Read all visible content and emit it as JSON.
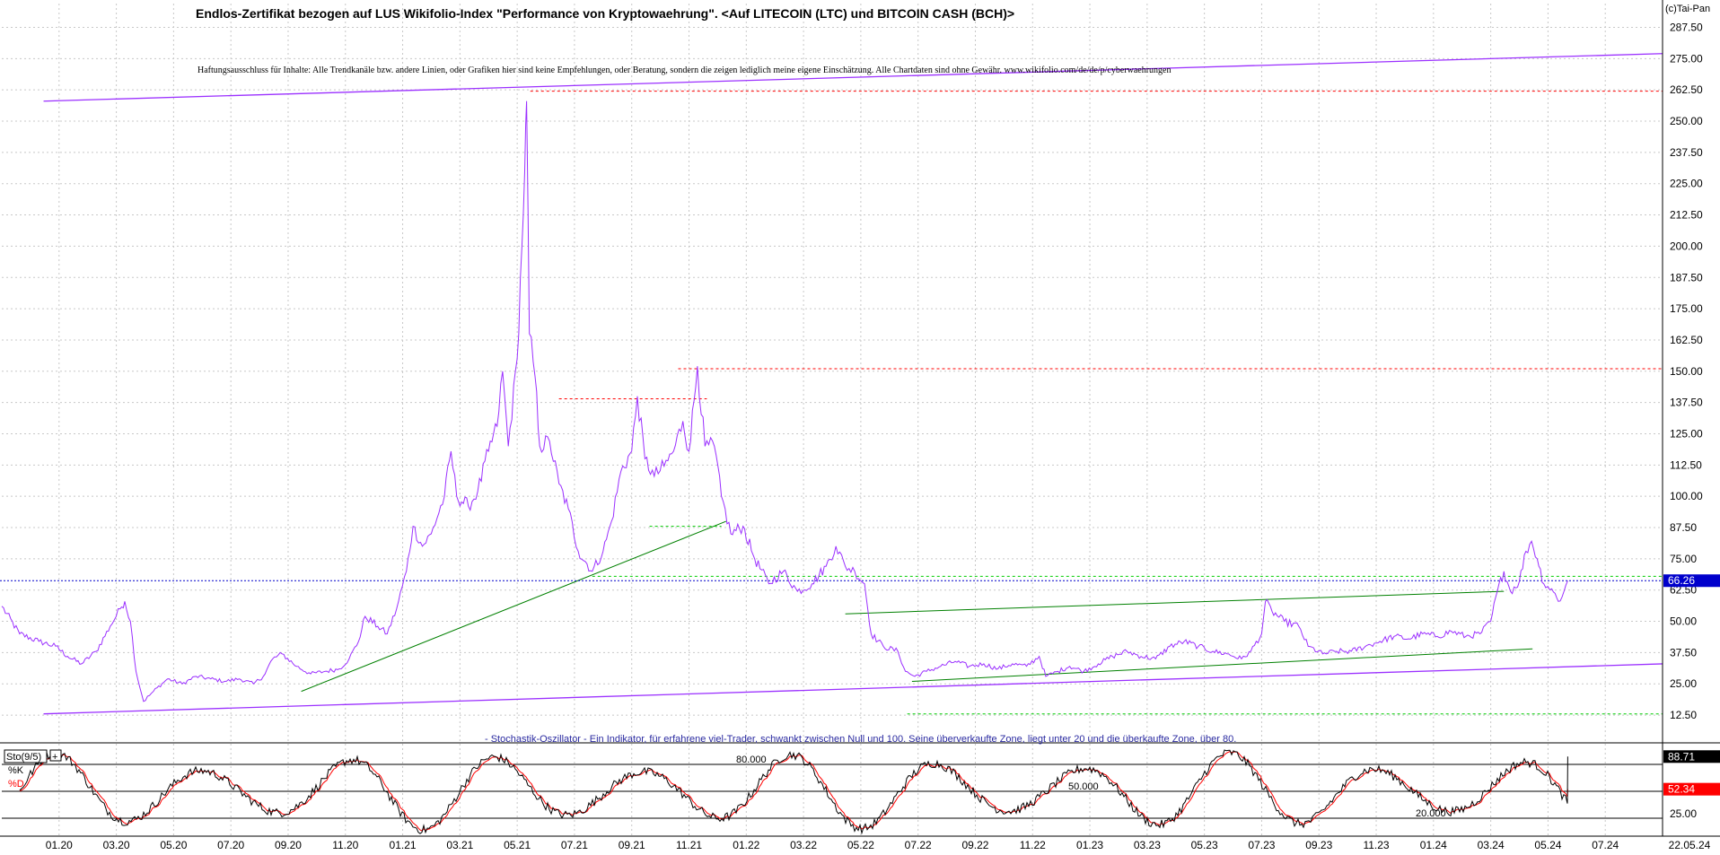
{
  "copyright": "(c)Tai-Pan",
  "title": "Endlos-Zertifikat bezogen auf LUS Wikifolio-Index \"Performance von Kryptowaehrung\". <Auf LITECOIN (LTC) und BITCOIN CASH (BCH)>",
  "disclaimer": "Haftungsausschluss für Inhalte: Alle Trendkanäle bzw. andere Linien, oder Grafiken hier sind keine Empfehlungen, oder Beratung, sondern die zeigen lediglich meine eigene Einschätzung. Alle Chartdaten sind ohne Gewähr. www.wikifolio.com/de/de/p/cyberwaehrungen",
  "indicator_note": "- Stochastik-Oszillator - Ein Indikator, für erfahrene viel-Trader, schwankt zwischen Null und 100. Seine überverkaufte Zone, liegt unter 20 und die überkaufte Zone, über 80.",
  "colors": {
    "price": "#9b30ff",
    "trend": "#008000",
    "resistance": "#ff0000",
    "support_dash": "#00cc00",
    "last_price": "#0000cc",
    "k_line": "#000000",
    "d_line": "#ff0000"
  },
  "chart_data": [
    {
      "type": "line",
      "name": "price",
      "y_ticks": [
        "12.50",
        "25.00",
        "37.50",
        "50.00",
        "62.50",
        "75.00",
        "87.50",
        "100.00",
        "112.50",
        "125.00",
        "137.50",
        "150.00",
        "162.50",
        "175.00",
        "187.50",
        "200.00",
        "212.50",
        "225.00",
        "237.50",
        "250.00",
        "262.50",
        "275.00",
        "287.50"
      ],
      "ylim": [
        5,
        297
      ],
      "x_ticks": [
        "01.20",
        "03.20",
        "05.20",
        "07.20",
        "09.20",
        "11.20",
        "01.21",
        "03.21",
        "05.21",
        "07.21",
        "09.21",
        "11.21",
        "01.22",
        "03.22",
        "05.22",
        "07.22",
        "09.22",
        "11.22",
        "01.23",
        "03.23",
        "05.23",
        "07.23",
        "09.23",
        "11.23",
        "01.24",
        "03.24",
        "05.24",
        "07.24",
        "22.05.24"
      ],
      "xlim": [
        "2019-11",
        "2024-09"
      ],
      "grid": true,
      "last_price_label": "66.26",
      "last_price": 66.26,
      "price_points": [
        [
          "2019-11-01",
          56
        ],
        [
          "2019-11-20",
          45
        ],
        [
          "2019-12-10",
          42
        ],
        [
          "2019-12-28",
          40
        ],
        [
          "2020-01-10",
          36
        ],
        [
          "2020-01-25",
          33
        ],
        [
          "2020-02-10",
          38
        ],
        [
          "2020-02-25",
          48
        ],
        [
          "2020-03-05",
          55
        ],
        [
          "2020-03-10",
          58
        ],
        [
          "2020-03-16",
          50
        ],
        [
          "2020-03-22",
          30
        ],
        [
          "2020-03-30",
          18
        ],
        [
          "2020-04-10",
          22
        ],
        [
          "2020-04-25",
          27
        ],
        [
          "2020-05-10",
          25
        ],
        [
          "2020-05-25",
          28
        ],
        [
          "2020-06-10",
          27
        ],
        [
          "2020-06-25",
          26
        ],
        [
          "2020-07-10",
          27
        ],
        [
          "2020-07-25",
          25
        ],
        [
          "2020-08-05",
          28
        ],
        [
          "2020-08-15",
          35
        ],
        [
          "2020-08-25",
          37
        ],
        [
          "2020-09-10",
          32
        ],
        [
          "2020-09-25",
          29
        ],
        [
          "2020-10-10",
          30
        ],
        [
          "2020-10-25",
          31
        ],
        [
          "2020-11-05",
          35
        ],
        [
          "2020-11-15",
          42
        ],
        [
          "2020-11-22",
          52
        ],
        [
          "2020-12-05",
          48
        ],
        [
          "2020-12-15",
          45
        ],
        [
          "2020-12-25",
          55
        ],
        [
          "2021-01-05",
          70
        ],
        [
          "2021-01-12",
          88
        ],
        [
          "2021-01-22",
          80
        ],
        [
          "2021-02-01",
          85
        ],
        [
          "2021-02-15",
          100
        ],
        [
          "2021-02-22",
          118
        ],
        [
          "2021-02-28",
          100
        ],
        [
          "2021-03-10",
          96
        ],
        [
          "2021-03-20",
          102
        ],
        [
          "2021-04-01",
          118
        ],
        [
          "2021-04-10",
          128
        ],
        [
          "2021-04-16",
          150
        ],
        [
          "2021-04-22",
          120
        ],
        [
          "2021-05-01",
          155
        ],
        [
          "2021-05-06",
          200
        ],
        [
          "2021-05-09",
          230
        ],
        [
          "2021-05-11",
          258
        ],
        [
          "2021-05-14",
          165
        ],
        [
          "2021-05-20",
          148
        ],
        [
          "2021-05-25",
          120
        ],
        [
          "2021-06-05",
          122
        ],
        [
          "2021-06-15",
          105
        ],
        [
          "2021-06-25",
          95
        ],
        [
          "2021-07-05",
          78
        ],
        [
          "2021-07-20",
          70
        ],
        [
          "2021-08-01",
          78
        ],
        [
          "2021-08-10",
          90
        ],
        [
          "2021-08-20",
          110
        ],
        [
          "2021-09-01",
          118
        ],
        [
          "2021-09-07",
          140
        ],
        [
          "2021-09-15",
          115
        ],
        [
          "2021-09-25",
          108
        ],
        [
          "2021-10-05",
          112
        ],
        [
          "2021-10-15",
          118
        ],
        [
          "2021-10-25",
          130
        ],
        [
          "2021-11-01",
          118
        ],
        [
          "2021-11-10",
          152
        ],
        [
          "2021-11-18",
          120
        ],
        [
          "2021-11-28",
          120
        ],
        [
          "2021-12-05",
          100
        ],
        [
          "2021-12-15",
          85
        ],
        [
          "2021-12-28",
          88
        ],
        [
          "2022-01-10",
          75
        ],
        [
          "2022-01-25",
          65
        ],
        [
          "2022-02-10",
          70
        ],
        [
          "2022-02-25",
          62
        ],
        [
          "2022-03-10",
          65
        ],
        [
          "2022-03-25",
          72
        ],
        [
          "2022-04-05",
          80
        ],
        [
          "2022-04-15",
          72
        ],
        [
          "2022-04-25",
          70
        ],
        [
          "2022-05-05",
          65
        ],
        [
          "2022-05-12",
          45
        ],
        [
          "2022-05-25",
          40
        ],
        [
          "2022-06-10",
          38
        ],
        [
          "2022-06-18",
          30
        ],
        [
          "2022-06-28",
          28
        ],
        [
          "2022-07-10",
          30
        ],
        [
          "2022-07-25",
          32
        ],
        [
          "2022-08-10",
          34
        ],
        [
          "2022-08-25",
          32
        ],
        [
          "2022-09-10",
          33
        ],
        [
          "2022-09-25",
          31
        ],
        [
          "2022-10-10",
          33
        ],
        [
          "2022-10-25",
          32
        ],
        [
          "2022-11-08",
          36
        ],
        [
          "2022-11-15",
          28
        ],
        [
          "2022-11-28",
          30
        ],
        [
          "2022-12-10",
          32
        ],
        [
          "2022-12-25",
          30
        ],
        [
          "2023-01-10",
          33
        ],
        [
          "2023-01-25",
          36
        ],
        [
          "2023-02-10",
          38
        ],
        [
          "2023-02-25",
          36
        ],
        [
          "2023-03-10",
          35
        ],
        [
          "2023-03-25",
          40
        ],
        [
          "2023-04-10",
          42
        ],
        [
          "2023-04-25",
          40
        ],
        [
          "2023-05-10",
          38
        ],
        [
          "2023-05-25",
          37
        ],
        [
          "2023-06-10",
          35
        ],
        [
          "2023-06-20",
          38
        ],
        [
          "2023-07-01",
          45
        ],
        [
          "2023-07-05",
          58
        ],
        [
          "2023-07-12",
          54
        ],
        [
          "2023-07-25",
          50
        ],
        [
          "2023-08-10",
          48
        ],
        [
          "2023-08-20",
          40
        ],
        [
          "2023-09-05",
          37
        ],
        [
          "2023-09-20",
          38
        ],
        [
          "2023-10-05",
          38
        ],
        [
          "2023-10-20",
          40
        ],
        [
          "2023-11-05",
          42
        ],
        [
          "2023-11-20",
          44
        ],
        [
          "2023-12-05",
          43
        ],
        [
          "2023-12-20",
          45
        ],
        [
          "2024-01-05",
          44
        ],
        [
          "2024-01-20",
          46
        ],
        [
          "2024-02-05",
          44
        ],
        [
          "2024-02-20",
          45
        ],
        [
          "2024-03-01",
          50
        ],
        [
          "2024-03-08",
          62
        ],
        [
          "2024-03-15",
          70
        ],
        [
          "2024-03-22",
          62
        ],
        [
          "2024-04-01",
          66
        ],
        [
          "2024-04-08",
          78
        ],
        [
          "2024-04-14",
          82
        ],
        [
          "2024-04-20",
          75
        ],
        [
          "2024-04-27",
          65
        ],
        [
          "2024-05-05",
          63
        ],
        [
          "2024-05-12",
          58
        ],
        [
          "2024-05-18",
          62
        ],
        [
          "2024-05-22",
          66.26
        ]
      ],
      "lines": {
        "upper_channel": [
          [
            "2019-12-15",
            258
          ],
          [
            "2024-09-01",
            277
          ]
        ],
        "lower_channel": [
          [
            "2019-12-15",
            13
          ],
          [
            "2024-09-01",
            33
          ]
        ],
        "trend_green_1": [
          [
            "2020-09-15",
            22
          ],
          [
            "2021-12-10",
            90
          ]
        ],
        "trend_green_2a": [
          [
            "2022-04-15",
            53
          ],
          [
            "2024-03-15",
            62
          ]
        ],
        "trend_green_2b": [
          [
            "2022-06-25",
            26
          ],
          [
            "2024-04-15",
            39
          ]
        ],
        "resistance_top": [
          [
            "2021-05-15",
            262
          ],
          [
            "2024-09-01",
            262
          ]
        ],
        "resistance_150": [
          [
            "2021-10-20",
            151
          ],
          [
            "2024-09-01",
            151
          ]
        ],
        "resistance_138": [
          [
            "2021-06-15",
            139
          ],
          [
            "2021-11-20",
            139
          ]
        ],
        "support_68": [
          [
            "2021-07-20",
            68
          ],
          [
            "2024-09-01",
            68
          ]
        ],
        "support_88": [
          [
            "2021-09-20",
            88
          ],
          [
            "2021-12-05",
            88
          ]
        ],
        "support_13": [
          [
            "2022-06-20",
            13
          ],
          [
            "2024-09-01",
            13
          ]
        ]
      }
    },
    {
      "type": "line",
      "name": "Sto(9/5)",
      "label": "Sto(9/5)",
      "k_label": "%K",
      "d_label": "%D",
      "ylim": [
        0,
        100
      ],
      "levels": [
        "80.000",
        "50.000",
        "20.000"
      ],
      "y_ticks": [
        "25.00"
      ],
      "k_value": "88.71",
      "d_value": "52.34",
      "k_last": 88.71,
      "d_last": 52.34
    }
  ]
}
